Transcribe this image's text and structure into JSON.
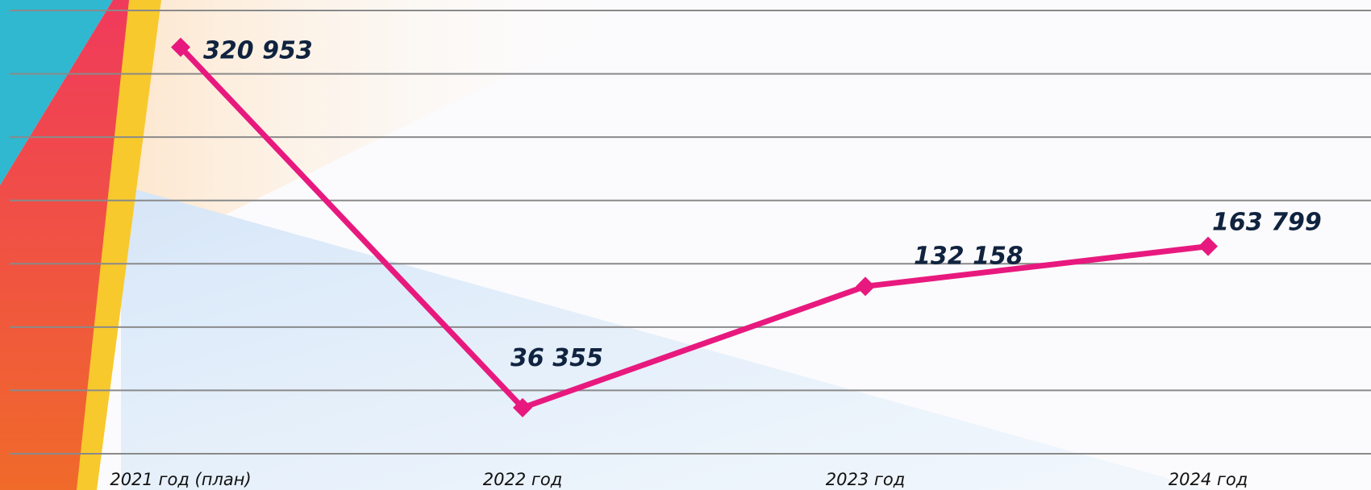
{
  "chart_data": {
    "type": "line",
    "categories": [
      "2021 год (план)",
      "2022 год",
      "2023 год",
      "2024 год"
    ],
    "values": [
      320953,
      36355,
      132158,
      163799
    ],
    "value_labels": [
      "320 953",
      "36 355",
      "132 158",
      "163 799"
    ],
    "color": "#e8197e",
    "ylim": [
      0,
      350000
    ],
    "yticks": [
      0,
      50000,
      100000,
      150000,
      200000,
      250000,
      300000,
      350000
    ],
    "grid": true
  }
}
